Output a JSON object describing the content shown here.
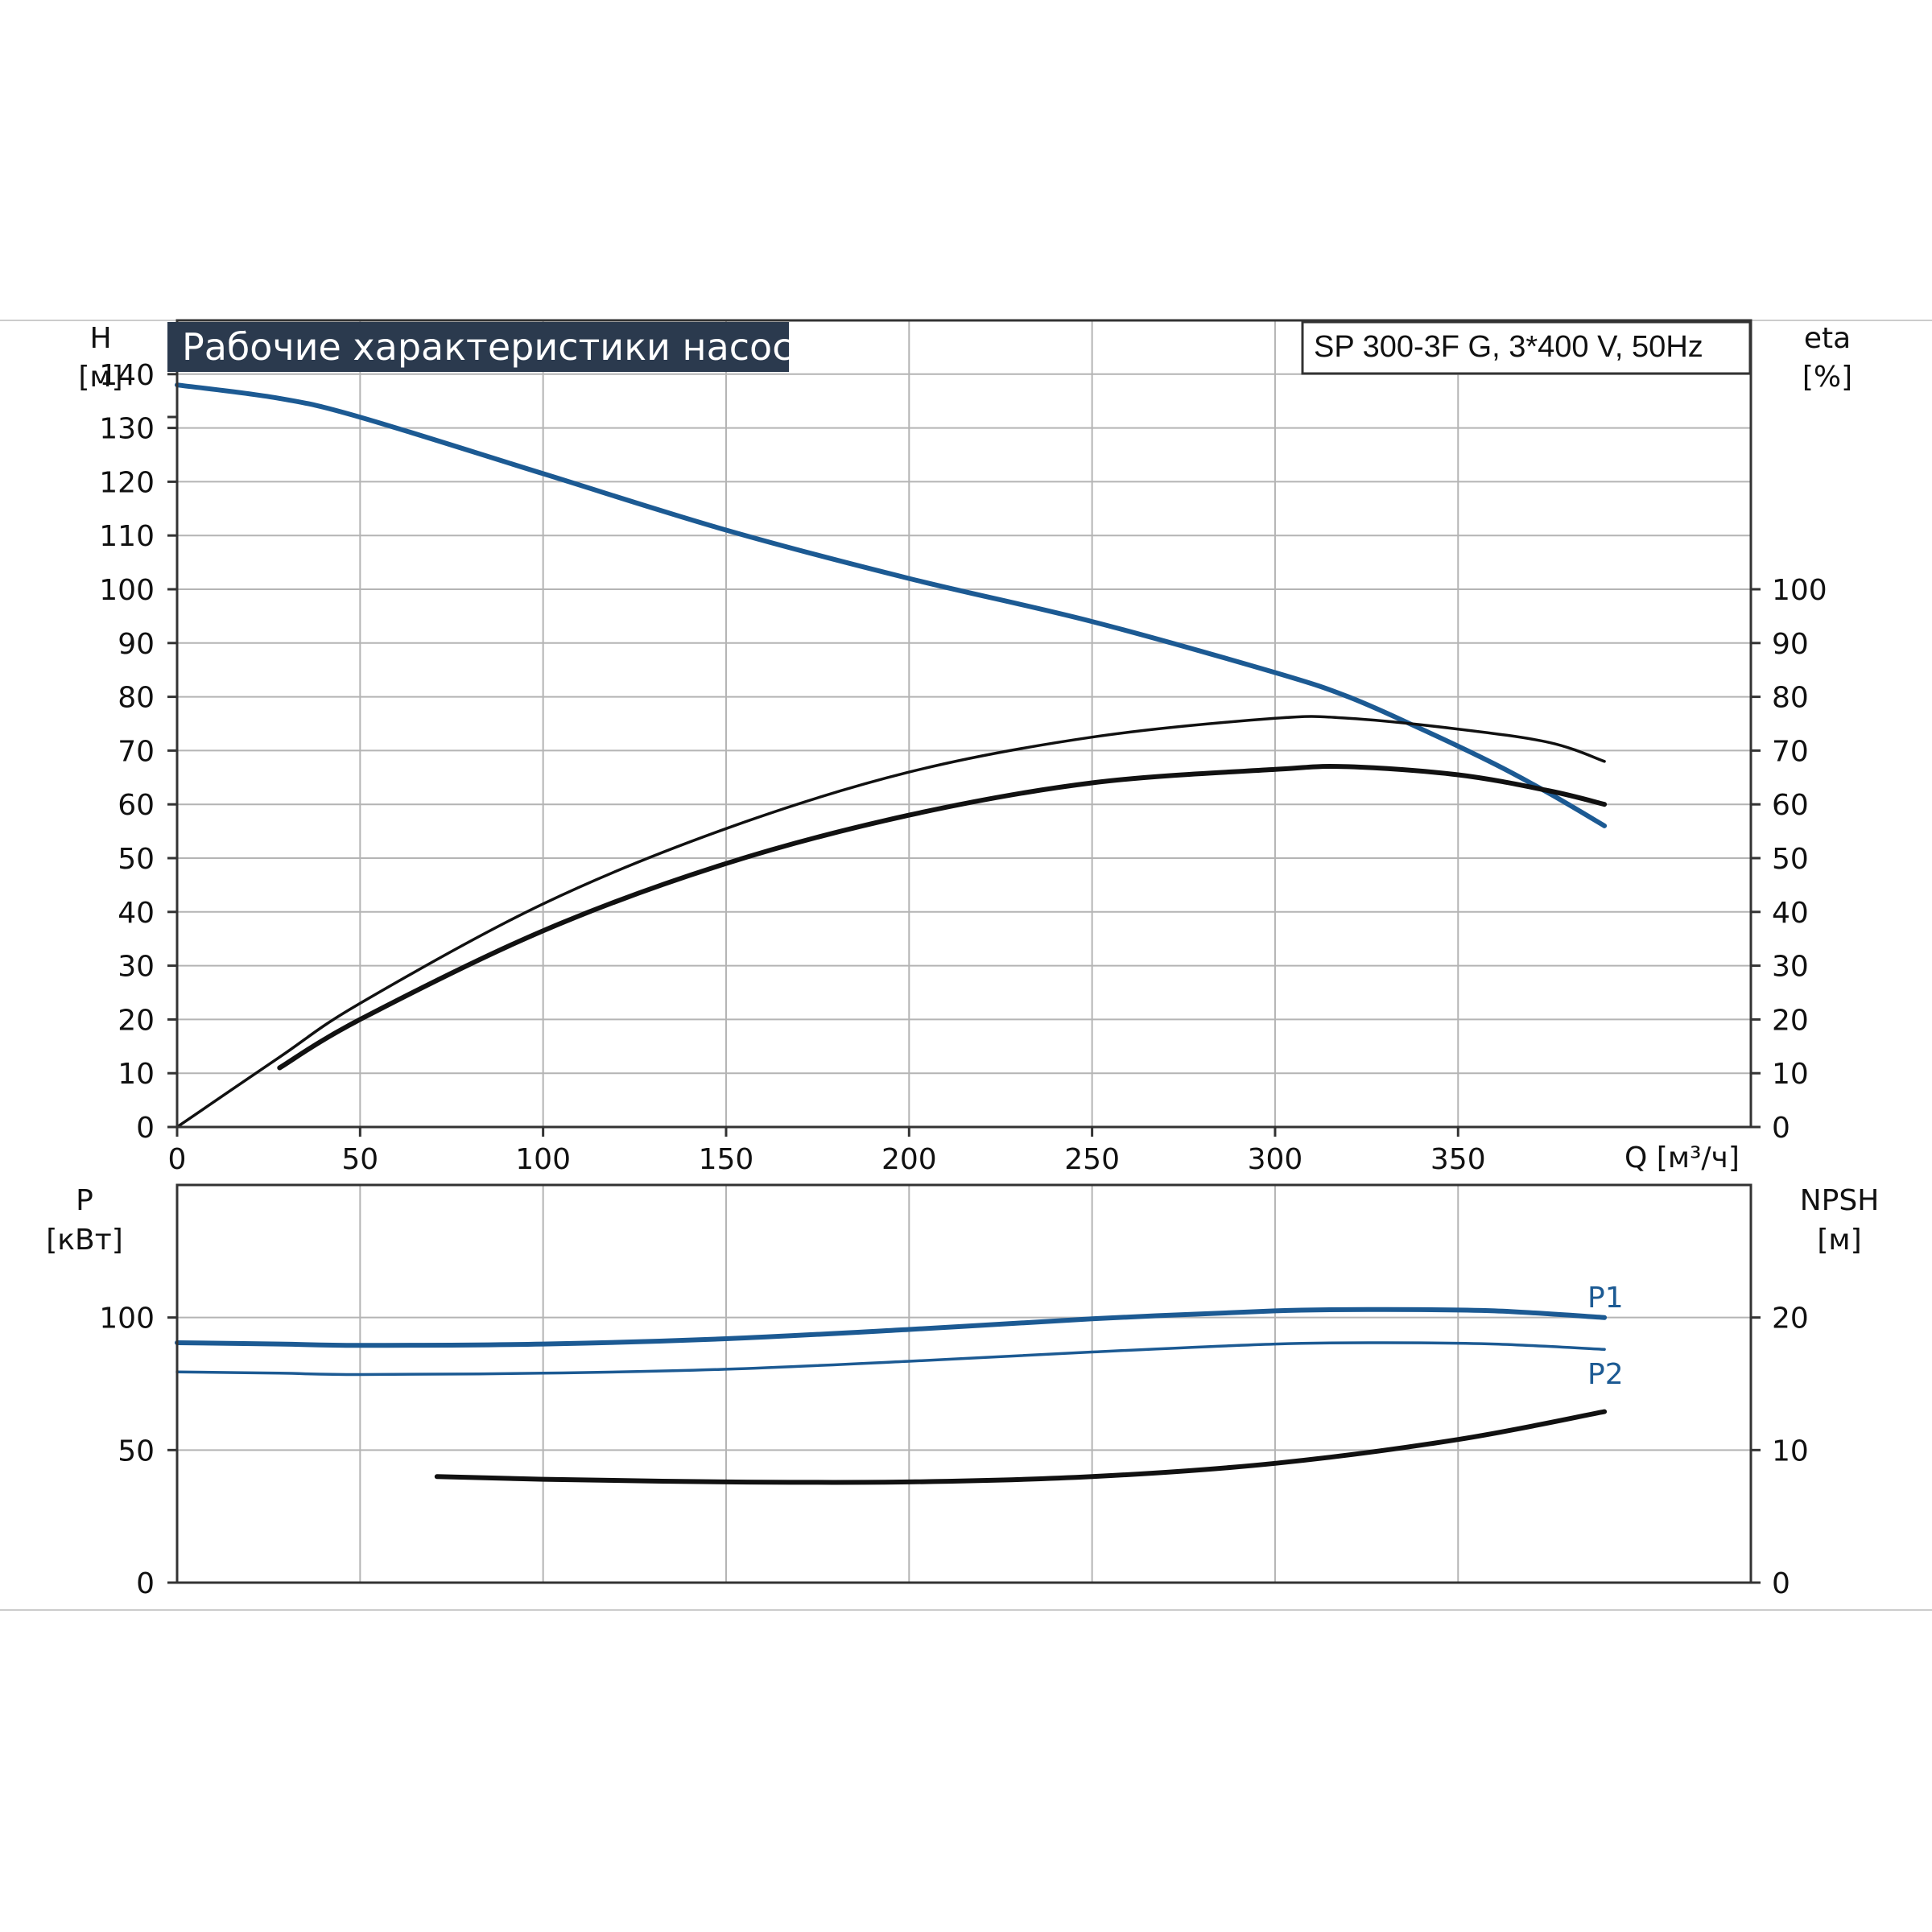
{
  "chart_title": "Рабочие характеристики насоса",
  "model_label": "SP 300-3F G, 3*400 V, 50Hz",
  "colors": {
    "blue": "#1c5a93",
    "black": "#111111",
    "grid": "#b4b4b4",
    "title_bg": "#2b3a4e"
  },
  "chart_data": [
    {
      "type": "line",
      "x_axis": {
        "label": "Q [м³/ч]",
        "lim": [
          0,
          430
        ],
        "ticks": [
          "0",
          "50",
          "100",
          "150",
          "200",
          "250",
          "300",
          "350"
        ]
      },
      "y_left": {
        "label_top": "H",
        "label_bottom": "[м]",
        "lim": [
          0,
          150
        ],
        "ticks": [
          "0",
          "10",
          "20",
          "30",
          "40",
          "50",
          "60",
          "70",
          "80",
          "90",
          "100",
          "110",
          "120",
          "130",
          "140"
        ]
      },
      "y_right": {
        "label_top": "eta",
        "label_bottom": "[%]",
        "lim": [
          0,
          150
        ],
        "ticks": [
          "0",
          "10",
          "20",
          "30",
          "40",
          "50",
          "60",
          "70",
          "80",
          "90",
          "100"
        ]
      },
      "grid": true,
      "series": [
        {
          "axis": "left",
          "color": "#1c5a93",
          "width": 6,
          "points": [
            [
              0,
              138
            ],
            [
              28,
              135.5
            ],
            [
              50,
              132
            ],
            [
              100,
              121.5
            ],
            [
              150,
              111
            ],
            [
              200,
              102
            ],
            [
              250,
              94
            ],
            [
              300,
              84.5
            ],
            [
              320,
              80
            ],
            [
              340,
              74
            ],
            [
              360,
              67.5
            ],
            [
              375,
              62
            ],
            [
              390,
              56
            ]
          ]
        },
        {
          "axis": "right",
          "color": "#111111",
          "width": 3.5,
          "points": [
            [
              0,
              0
            ],
            [
              28,
              13
            ],
            [
              50,
              23
            ],
            [
              100,
              41.5
            ],
            [
              150,
              55.5
            ],
            [
              200,
              66
            ],
            [
              250,
              72.5
            ],
            [
              300,
              76
            ],
            [
              320,
              76
            ],
            [
              350,
              74
            ],
            [
              375,
              71.5
            ],
            [
              390,
              68
            ]
          ]
        },
        {
          "axis": "right",
          "color": "#111111",
          "width": 6,
          "points": [
            [
              28,
              11
            ],
            [
              50,
              20
            ],
            [
              100,
              36.5
            ],
            [
              150,
              49
            ],
            [
              200,
              58
            ],
            [
              250,
              64
            ],
            [
              300,
              66.5
            ],
            [
              320,
              67
            ],
            [
              350,
              65.5
            ],
            [
              375,
              62.5
            ],
            [
              390,
              60
            ]
          ]
        }
      ]
    },
    {
      "type": "line",
      "x_axis": {
        "lim": [
          0,
          430
        ]
      },
      "y_left": {
        "label_top": "P",
        "label_bottom": "[кВт]",
        "lim": [
          0,
          150
        ],
        "ticks": [
          "0",
          "50",
          "100"
        ]
      },
      "y_right": {
        "label_top": "NPSH",
        "label_bottom": "[м]",
        "lim": [
          0,
          30
        ],
        "ticks": [
          "0",
          "10",
          "20"
        ]
      },
      "grid": true,
      "series": [
        {
          "name": "P1",
          "axis": "left",
          "color": "#1c5a93",
          "width": 6,
          "points": [
            [
              0,
              90.5
            ],
            [
              28,
              90
            ],
            [
              50,
              89.5
            ],
            [
              100,
              90
            ],
            [
              150,
              92
            ],
            [
              200,
              95.5
            ],
            [
              250,
              99.5
            ],
            [
              300,
              102.5
            ],
            [
              330,
              103
            ],
            [
              360,
              102.5
            ],
            [
              390,
              100
            ]
          ]
        },
        {
          "name": "P2",
          "axis": "left",
          "color": "#1c5a93",
          "width": 3.5,
          "points": [
            [
              0,
              79.5
            ],
            [
              28,
              79
            ],
            [
              50,
              78.5
            ],
            [
              100,
              79
            ],
            [
              150,
              80.5
            ],
            [
              200,
              83.5
            ],
            [
              250,
              87
            ],
            [
              300,
              90
            ],
            [
              330,
              90.5
            ],
            [
              360,
              90
            ],
            [
              390,
              88
            ]
          ]
        },
        {
          "axis": "right",
          "color": "#111111",
          "width": 6,
          "points": [
            [
              71,
              8
            ],
            [
              100,
              7.8
            ],
            [
              150,
              7.6
            ],
            [
              200,
              7.6
            ],
            [
              250,
              8
            ],
            [
              300,
              9
            ],
            [
              350,
              10.8
            ],
            [
              390,
              12.9
            ]
          ]
        }
      ]
    }
  ]
}
